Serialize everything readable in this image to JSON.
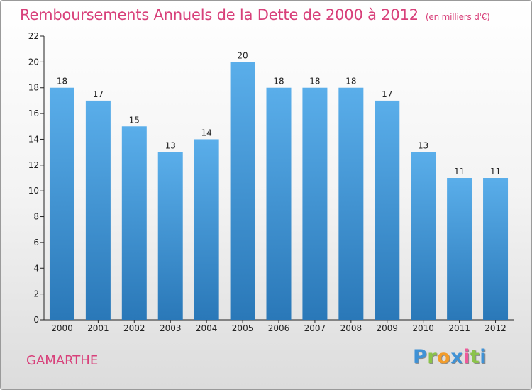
{
  "title": "Remboursements Annuels de la Dette de 2000 à 2012",
  "subtitle": "(en milliers d'€)",
  "commune": "GAMARTHE",
  "brand": {
    "letters": [
      {
        "char": "P",
        "color": "#3f92d6"
      },
      {
        "char": "r",
        "color": "#8bc34a"
      },
      {
        "char": "o",
        "color": "#f29c2b"
      },
      {
        "char": "x",
        "color": "#3f92d6"
      },
      {
        "char": "i",
        "color": "#ef5a9a"
      },
      {
        "char": "t",
        "color": "#8bc34a"
      },
      {
        "char": "i",
        "color": "#3f92d6"
      }
    ]
  },
  "colors": {
    "bar_top": "#5aaeea",
    "bar_bottom": "#2a78b8",
    "axis": "#222222",
    "text": "#222222",
    "accent": "#d8407a"
  },
  "chart_data": {
    "type": "bar",
    "title": "Remboursements Annuels de la Dette de 2000 à 2012",
    "subtitle": "(en milliers d'€)",
    "xlabel": "",
    "ylabel": "",
    "categories": [
      "2000",
      "2001",
      "2002",
      "2003",
      "2004",
      "2005",
      "2006",
      "2007",
      "2008",
      "2009",
      "2010",
      "2011",
      "2012"
    ],
    "values": [
      18,
      17,
      15,
      13,
      14,
      20,
      18,
      18,
      18,
      17,
      13,
      11,
      11
    ],
    "ylim": [
      0,
      22
    ],
    "yticks": [
      0,
      2,
      4,
      6,
      8,
      10,
      12,
      14,
      16,
      18,
      20,
      22
    ],
    "grid": false,
    "legend": "none"
  }
}
